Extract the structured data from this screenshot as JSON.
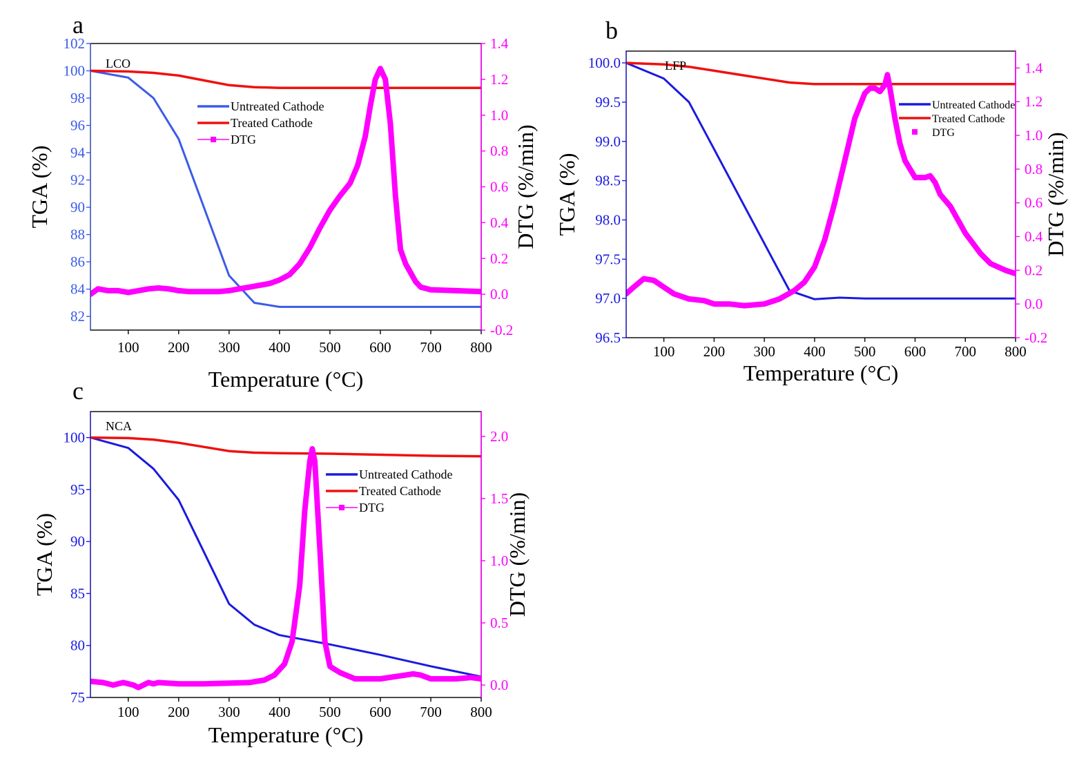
{
  "colors": {
    "untreated_lco": "#3b5be8",
    "untreated": "#1a1ae0",
    "treated": "#ee1111",
    "dtg": "#ff00ff",
    "left_axis_lco": "#3b5be8",
    "left_axis": "#1a1ae0",
    "right_axis": "#ff00ff"
  },
  "chart_data": [
    {
      "panel_letter": "a",
      "type": "line",
      "sample_label": "LCO",
      "xlabel": "Temperature (°C)",
      "ylabel_left": "TGA (%)",
      "ylabel_right": "DTG (%/min)",
      "xlim": [
        25,
        800
      ],
      "ylim_left": [
        81,
        102
      ],
      "ylim_right": [
        -0.2,
        1.4
      ],
      "xticks": [
        100,
        200,
        300,
        400,
        500,
        600,
        700,
        800
      ],
      "yticks_left": [
        82,
        84,
        86,
        88,
        90,
        92,
        94,
        96,
        98,
        100,
        102
      ],
      "yticks_right": [
        -0.2,
        0.0,
        0.2,
        0.4,
        0.6,
        0.8,
        1.0,
        1.2,
        1.4
      ],
      "yticks_right_labels": [
        "-0.2",
        "0.0",
        "0.2",
        "0.4",
        "0.6",
        "0.8",
        "1.0",
        "1.2",
        "1.4"
      ],
      "legend_position": "center",
      "legend": [
        "Untreated Cathode",
        "Treated Cathode",
        "DTG"
      ],
      "series": [
        {
          "name": "Untreated Cathode",
          "axis": "left",
          "x": [
            25,
            100,
            150,
            200,
            250,
            300,
            350,
            400,
            500,
            600,
            700,
            800
          ],
          "y": [
            100,
            99.5,
            98,
            95,
            90,
            85,
            83,
            82.7,
            82.7,
            82.7,
            82.7,
            82.7
          ]
        },
        {
          "name": "Treated Cathode",
          "axis": "left",
          "x": [
            25,
            100,
            150,
            200,
            250,
            300,
            350,
            400,
            500,
            600,
            700,
            800
          ],
          "y": [
            100,
            99.95,
            99.85,
            99.65,
            99.3,
            98.95,
            98.8,
            98.75,
            98.75,
            98.75,
            98.75,
            98.75
          ]
        },
        {
          "name": "DTG",
          "axis": "right",
          "x": [
            25,
            40,
            60,
            80,
            100,
            120,
            140,
            160,
            180,
            200,
            220,
            250,
            280,
            300,
            320,
            340,
            360,
            380,
            400,
            420,
            440,
            460,
            480,
            500,
            520,
            540,
            555,
            570,
            580,
            590,
            600,
            610,
            620,
            630,
            640,
            650,
            660,
            670,
            680,
            700,
            750,
            800
          ],
          "y": [
            0.0,
            0.03,
            0.02,
            0.02,
            0.01,
            0.02,
            0.03,
            0.035,
            0.03,
            0.02,
            0.015,
            0.015,
            0.015,
            0.02,
            0.03,
            0.04,
            0.05,
            0.06,
            0.08,
            0.11,
            0.17,
            0.26,
            0.37,
            0.47,
            0.55,
            0.62,
            0.72,
            0.88,
            1.05,
            1.2,
            1.26,
            1.2,
            0.95,
            0.55,
            0.25,
            0.17,
            0.12,
            0.07,
            0.04,
            0.025,
            0.02,
            0.015
          ]
        }
      ]
    },
    {
      "panel_letter": "b",
      "type": "line",
      "sample_label": "LFP",
      "xlabel": "Temperature (°C)",
      "ylabel_left": "TGA (%)",
      "ylabel_right": "DTG (%/min)",
      "xlim": [
        25,
        800
      ],
      "ylim_left": [
        96.5,
        100.15
      ],
      "ylim_right": [
        -0.2,
        1.5
      ],
      "xticks": [
        100,
        200,
        300,
        400,
        500,
        600,
        700,
        800
      ],
      "yticks_left": [
        96.5,
        97.0,
        97.5,
        98.0,
        98.5,
        99.0,
        99.5,
        100.0
      ],
      "yticks_left_labels": [
        "96.5",
        "97.0",
        "97.5",
        "98.0",
        "98.5",
        "99.0",
        "99.5",
        "100.0"
      ],
      "yticks_right": [
        -0.2,
        0.0,
        0.2,
        0.4,
        0.6,
        0.8,
        1.0,
        1.2,
        1.4
      ],
      "yticks_right_labels": [
        "-0.2",
        "0.0",
        "0.2",
        "0.4",
        "0.6",
        "0.8",
        "1.0",
        "1.2",
        "1.4"
      ],
      "legend_position": "top-right",
      "legend": [
        "Untreated Cathode",
        "Treated Cathode",
        "DTG"
      ],
      "series": [
        {
          "name": "Untreated Cathode",
          "axis": "left",
          "x": [
            25,
            100,
            150,
            200,
            250,
            300,
            350,
            400,
            450,
            500,
            600,
            700,
            800
          ],
          "y": [
            100,
            99.8,
            99.5,
            98.9,
            98.3,
            97.7,
            97.1,
            96.99,
            97.01,
            97.0,
            97.0,
            97.0,
            97.0
          ]
        },
        {
          "name": "Treated Cathode",
          "axis": "left",
          "x": [
            25,
            100,
            150,
            200,
            250,
            300,
            350,
            400,
            500,
            600,
            700,
            800
          ],
          "y": [
            100,
            99.98,
            99.95,
            99.9,
            99.85,
            99.8,
            99.75,
            99.73,
            99.73,
            99.73,
            99.73,
            99.73
          ]
        },
        {
          "name": "DTG",
          "axis": "right",
          "x": [
            25,
            40,
            60,
            80,
            100,
            120,
            150,
            180,
            200,
            230,
            260,
            300,
            330,
            360,
            380,
            400,
            420,
            440,
            460,
            480,
            500,
            510,
            520,
            530,
            540,
            545,
            550,
            560,
            570,
            580,
            600,
            620,
            630,
            640,
            650,
            670,
            700,
            730,
            750,
            780,
            800
          ],
          "y": [
            0.06,
            0.1,
            0.15,
            0.14,
            0.1,
            0.06,
            0.03,
            0.02,
            0.0,
            0.0,
            -0.01,
            0.0,
            0.03,
            0.08,
            0.13,
            0.22,
            0.38,
            0.6,
            0.85,
            1.1,
            1.25,
            1.28,
            1.28,
            1.26,
            1.3,
            1.36,
            1.28,
            1.1,
            0.95,
            0.85,
            0.75,
            0.75,
            0.76,
            0.72,
            0.65,
            0.58,
            0.42,
            0.3,
            0.24,
            0.2,
            0.18
          ]
        }
      ]
    },
    {
      "panel_letter": "c",
      "type": "line",
      "sample_label": "NCA",
      "xlabel": "Temperature (°C)",
      "ylabel_left": "TGA (%)",
      "ylabel_right": "DTG (%/min)",
      "xlim": [
        25,
        800
      ],
      "ylim_left": [
        75,
        102.5
      ],
      "ylim_right": [
        -0.1,
        2.2
      ],
      "xticks": [
        100,
        200,
        300,
        400,
        500,
        600,
        700,
        800
      ],
      "yticks_left": [
        75,
        80,
        85,
        90,
        95,
        100
      ],
      "yticks_right": [
        0.0,
        0.5,
        1.0,
        1.5,
        2.0
      ],
      "yticks_right_labels": [
        "0.0",
        "0.5",
        "1.0",
        "1.5",
        "2.0"
      ],
      "legend_position": "center-right",
      "legend": [
        "Untreated Cathode",
        "Treated Cathode",
        "DTG"
      ],
      "series": [
        {
          "name": "Untreated Cathode",
          "axis": "left",
          "x": [
            25,
            100,
            150,
            200,
            250,
            300,
            350,
            400,
            500,
            600,
            700,
            800
          ],
          "y": [
            100,
            99,
            97,
            94,
            89,
            84,
            82,
            81,
            80.1,
            79.1,
            78,
            77
          ]
        },
        {
          "name": "Treated Cathode",
          "axis": "left",
          "x": [
            25,
            100,
            150,
            200,
            250,
            300,
            350,
            400,
            500,
            600,
            700,
            800
          ],
          "y": [
            100,
            99.95,
            99.8,
            99.5,
            99.1,
            98.7,
            98.55,
            98.5,
            98.45,
            98.35,
            98.25,
            98.2
          ]
        },
        {
          "name": "DTG",
          "axis": "right",
          "x": [
            25,
            50,
            70,
            90,
            110,
            120,
            130,
            140,
            150,
            160,
            200,
            250,
            300,
            340,
            370,
            390,
            410,
            425,
            440,
            450,
            460,
            465,
            470,
            480,
            490,
            500,
            520,
            550,
            600,
            650,
            665,
            680,
            700,
            750,
            780,
            800
          ],
          "y": [
            0.03,
            0.02,
            0.0,
            0.02,
            0.0,
            -0.02,
            0.0,
            0.02,
            0.01,
            0.02,
            0.01,
            0.01,
            0.015,
            0.02,
            0.04,
            0.08,
            0.17,
            0.35,
            0.8,
            1.4,
            1.8,
            1.9,
            1.8,
            1.1,
            0.35,
            0.15,
            0.1,
            0.05,
            0.05,
            0.08,
            0.09,
            0.08,
            0.05,
            0.05,
            0.06,
            0.05
          ]
        }
      ]
    }
  ]
}
